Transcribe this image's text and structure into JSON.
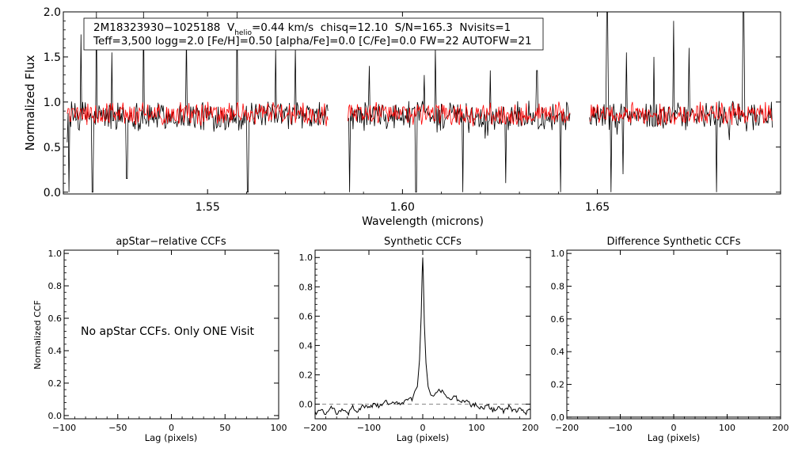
{
  "chart_data": [
    {
      "type": "line",
      "title": "",
      "xlabel": "Wavelength (microns)",
      "ylabel": "Normalized Flux",
      "xlim": [
        1.513,
        1.697
      ],
      "ylim": [
        -0.02,
        2.0
      ],
      "xticks": [
        1.55,
        1.6,
        1.65
      ],
      "xtick_labels": [
        "1.55",
        "1.60",
        "1.65"
      ],
      "yticks": [
        0.0,
        0.5,
        1.0,
        1.5,
        2.0
      ],
      "ytick_labels": [
        "0.0",
        "0.5",
        "1.0",
        "1.5",
        "2.0"
      ],
      "annotation": {
        "line1_prefix": "2M18323930−1025188  V",
        "line1_sub": "helio",
        "line1_suffix": "=0.44 km/s  chisq=12.10  S/N=165.3  Nvisits=1",
        "line2": "Teff=3,500 logg=2.0 [Fe/H]=0.50 [alpha/Fe]=0.0 [C/Fe]=0.0 FW=22 AUTOFW=21"
      },
      "chips": [
        [
          1.514,
          1.581
        ],
        [
          1.586,
          1.643
        ],
        [
          1.648,
          1.695
        ]
      ],
      "series": [
        {
          "name": "observed",
          "color": "#000000",
          "base": 0.86,
          "noise": 0.14,
          "absorption": [
            [
              1.5145,
              0.0
            ],
            [
              1.5205,
              0.0
            ],
            [
              1.5255,
              0.0
            ],
            [
              1.5335,
              0.0
            ],
            [
              1.5293,
              0.15
            ],
            [
              1.5603,
              0.0
            ],
            [
              1.5813,
              0.0
            ],
            [
              1.5865,
              0.0
            ],
            [
              1.6035,
              0.0
            ],
            [
              1.6155,
              0.0
            ],
            [
              1.6265,
              0.1
            ],
            [
              1.6405,
              0.0
            ],
            [
              1.6435,
              0.0
            ],
            [
              1.6535,
              0.0
            ],
            [
              1.6565,
              0.2
            ],
            [
              1.6805,
              0.0
            ]
          ],
          "emission": [
            [
              1.5175,
              1.75
            ],
            [
              1.5215,
              2.0
            ],
            [
              1.5255,
              1.55
            ],
            [
              1.5335,
              2.0
            ],
            [
              1.5445,
              1.75
            ],
            [
              1.5575,
              2.0
            ],
            [
              1.5675,
              1.6
            ],
            [
              1.5725,
              1.6
            ],
            [
              1.5915,
              1.4
            ],
            [
              1.6055,
              1.3
            ],
            [
              1.6085,
              1.6
            ],
            [
              1.6225,
              1.35
            ],
            [
              1.6345,
              1.35
            ],
            [
              1.6455,
              1.5
            ],
            [
              1.6525,
              2.0
            ],
            [
              1.6575,
              1.55
            ],
            [
              1.6645,
              1.5
            ],
            [
              1.6695,
              1.9
            ],
            [
              1.6735,
              1.6
            ],
            [
              1.6875,
              2.0
            ]
          ]
        },
        {
          "name": "synthetic",
          "color": "#ff0000",
          "base": 0.88,
          "noise": 0.11
        }
      ]
    },
    {
      "type": "line",
      "title": "apStar−relative CCFs",
      "xlabel": "Lag (pixels)",
      "ylabel": "Normalized CCF",
      "xlim": [
        -100,
        100
      ],
      "ylim": [
        -0.02,
        1.02
      ],
      "xticks": [
        -100,
        -50,
        0,
        50,
        100
      ],
      "xtick_labels": [
        "−100",
        "−50",
        "0",
        "50",
        "100"
      ],
      "yticks": [
        0.0,
        0.2,
        0.4,
        0.6,
        0.8,
        1.0
      ],
      "ytick_labels": [
        "0.0",
        "0.2",
        "0.4",
        "0.6",
        "0.8",
        "1.0"
      ],
      "note": "No apStar CCFs.  Only ONE Visit",
      "series": []
    },
    {
      "type": "line",
      "title": "Synthetic CCFs",
      "xlabel": "Lag (pixels)",
      "ylabel": "",
      "xlim": [
        -200,
        200
      ],
      "ylim": [
        -0.1,
        1.05
      ],
      "xticks": [
        -200,
        -100,
        0,
        100,
        200
      ],
      "xtick_labels": [
        "−200",
        "−100",
        "0",
        "100",
        "200"
      ],
      "yticks": [
        0.0,
        0.2,
        0.4,
        0.6,
        0.8,
        1.0
      ],
      "ytick_labels": [
        "0.0",
        "0.2",
        "0.4",
        "0.6",
        "0.8",
        "1.0"
      ],
      "reference_line": 0.0,
      "series": [
        {
          "name": "ccf",
          "color": "#000000",
          "x": [
            -200,
            -190,
            -180,
            -170,
            -160,
            -150,
            -140,
            -130,
            -120,
            -110,
            -100,
            -90,
            -80,
            -70,
            -60,
            -50,
            -40,
            -30,
            -20,
            -15,
            -10,
            -6,
            -3,
            -1,
            0,
            1,
            3,
            6,
            10,
            15,
            20,
            30,
            40,
            50,
            60,
            70,
            80,
            90,
            100,
            110,
            120,
            130,
            140,
            150,
            160,
            170,
            180,
            190,
            200
          ],
          "y": [
            -0.06,
            -0.04,
            -0.07,
            -0.02,
            -0.06,
            -0.03,
            -0.07,
            -0.02,
            -0.05,
            -0.01,
            -0.03,
            0.0,
            -0.02,
            0.02,
            -0.01,
            0.02,
            0.0,
            0.04,
            0.03,
            0.08,
            0.12,
            0.3,
            0.6,
            0.9,
            1.0,
            0.88,
            0.55,
            0.28,
            0.12,
            0.06,
            0.04,
            0.1,
            0.07,
            0.03,
            0.05,
            0.01,
            0.03,
            -0.01,
            0.0,
            -0.03,
            -0.01,
            -0.04,
            -0.02,
            -0.05,
            -0.02,
            -0.05,
            -0.03,
            -0.06,
            -0.04
          ]
        }
      ]
    },
    {
      "type": "line",
      "title": "Difference Synthetic CCFs",
      "xlabel": "Lag (pixels)",
      "ylabel": "",
      "xlim": [
        -200,
        200
      ],
      "ylim": [
        -0.01,
        1.02
      ],
      "xticks": [
        -200,
        -100,
        0,
        100,
        200
      ],
      "xtick_labels": [
        "−200",
        "−100",
        "0",
        "100",
        "200"
      ],
      "yticks": [
        0.0,
        0.2,
        0.4,
        0.6,
        0.8,
        1.0
      ],
      "ytick_labels": [
        "0.0",
        "0.2",
        "0.4",
        "0.6",
        "0.8",
        "1.0"
      ],
      "series": [
        {
          "name": "difference",
          "color": "#000000",
          "x": [
            -200,
            200
          ],
          "y": [
            0.0,
            0.0
          ]
        }
      ]
    }
  ]
}
